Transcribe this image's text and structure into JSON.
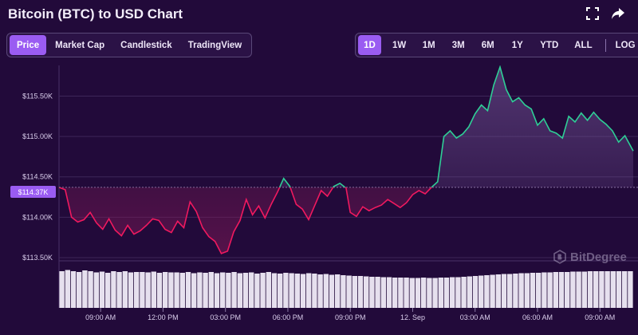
{
  "header": {
    "title": "Bitcoin (BTC) to USD Chart",
    "expand_icon": "expand-icon",
    "share_icon": "share-icon"
  },
  "chart_tabs": [
    "Price",
    "Market Cap",
    "Candlestick",
    "TradingView"
  ],
  "active_chart_tab": "Price",
  "timeframes": [
    "1D",
    "1W",
    "1M",
    "3M",
    "6M",
    "1Y",
    "YTD",
    "ALL"
  ],
  "active_timeframe": "1D",
  "log_label": "LOG",
  "current_price_label": "$114.37K",
  "watermark": "BitDegree",
  "colors": {
    "background": "#220a3a",
    "accent": "#9a5cf2",
    "up_line": "#2ecf96",
    "down_line": "#f0195f",
    "grid": "#3d2658",
    "volume": "#e6e0ee"
  },
  "chart_data": {
    "type": "line",
    "title": "Bitcoin (BTC) to USD Chart",
    "xlabel": "",
    "ylabel": "",
    "x_ticks": [
      "09:00 AM",
      "12:00 PM",
      "03:00 PM",
      "06:00 PM",
      "09:00 PM",
      "12. Sep",
      "03:00 AM",
      "06:00 AM",
      "09:00 AM"
    ],
    "y_ticks": [
      "$115.50K",
      "$115.00K",
      "$114.50K",
      "$114.00K",
      "$113.50K"
    ],
    "y_tick_values": [
      115500,
      115000,
      114500,
      114000,
      113500
    ],
    "ylim": [
      113460,
      115880
    ],
    "baseline": 114370,
    "hours_range": [
      -2.0,
      25.6
    ],
    "grid": true,
    "series": [
      {
        "points": [
          [
            -2.0,
            114370
          ],
          [
            -1.7,
            114340
          ],
          [
            -1.4,
            114000
          ],
          [
            -1.1,
            113940
          ],
          [
            -0.8,
            113970
          ],
          [
            -0.5,
            114060
          ],
          [
            -0.2,
            113930
          ],
          [
            0.1,
            113850
          ],
          [
            0.4,
            113980
          ],
          [
            0.7,
            113840
          ],
          [
            1.0,
            113770
          ],
          [
            1.3,
            113900
          ],
          [
            1.6,
            113790
          ],
          [
            1.9,
            113830
          ],
          [
            2.2,
            113900
          ],
          [
            2.5,
            113980
          ],
          [
            2.8,
            113960
          ],
          [
            3.1,
            113850
          ],
          [
            3.4,
            113810
          ],
          [
            3.7,
            113950
          ],
          [
            4.0,
            113870
          ],
          [
            4.3,
            114190
          ],
          [
            4.6,
            114070
          ],
          [
            4.9,
            113870
          ],
          [
            5.2,
            113760
          ],
          [
            5.5,
            113700
          ],
          [
            5.8,
            113550
          ],
          [
            6.1,
            113580
          ],
          [
            6.4,
            113820
          ],
          [
            6.7,
            113960
          ],
          [
            7.0,
            114220
          ],
          [
            7.3,
            114030
          ],
          [
            7.6,
            114140
          ],
          [
            7.9,
            113990
          ],
          [
            8.2,
            114160
          ],
          [
            8.5,
            114310
          ],
          [
            8.8,
            114480
          ],
          [
            9.1,
            114380
          ],
          [
            9.4,
            114160
          ],
          [
            9.7,
            114100
          ],
          [
            10.0,
            113970
          ],
          [
            10.3,
            114150
          ],
          [
            10.6,
            114330
          ],
          [
            10.9,
            114260
          ],
          [
            11.2,
            114380
          ],
          [
            11.5,
            114420
          ],
          [
            11.8,
            114360
          ],
          [
            12.0,
            114060
          ],
          [
            12.3,
            114010
          ],
          [
            12.6,
            114130
          ],
          [
            12.9,
            114080
          ],
          [
            13.2,
            114120
          ],
          [
            13.5,
            114150
          ],
          [
            13.8,
            114220
          ],
          [
            14.1,
            114170
          ],
          [
            14.4,
            114120
          ],
          [
            14.7,
            114180
          ],
          [
            15.0,
            114280
          ],
          [
            15.3,
            114330
          ],
          [
            15.6,
            114290
          ],
          [
            15.9,
            114370
          ],
          [
            16.2,
            114440
          ],
          [
            16.5,
            115000
          ],
          [
            16.8,
            115070
          ],
          [
            17.1,
            114980
          ],
          [
            17.4,
            115030
          ],
          [
            17.7,
            115120
          ],
          [
            18.0,
            115280
          ],
          [
            18.3,
            115390
          ],
          [
            18.6,
            115320
          ],
          [
            18.9,
            115640
          ],
          [
            19.2,
            115860
          ],
          [
            19.5,
            115580
          ],
          [
            19.8,
            115430
          ],
          [
            20.1,
            115480
          ],
          [
            20.4,
            115390
          ],
          [
            20.7,
            115340
          ],
          [
            21.0,
            115140
          ],
          [
            21.3,
            115220
          ],
          [
            21.6,
            115070
          ],
          [
            21.9,
            115040
          ],
          [
            22.2,
            114980
          ],
          [
            22.5,
            115250
          ],
          [
            22.8,
            115180
          ],
          [
            23.1,
            115290
          ],
          [
            23.4,
            115200
          ],
          [
            23.7,
            115300
          ],
          [
            24.0,
            115210
          ],
          [
            24.3,
            115150
          ],
          [
            24.6,
            115070
          ],
          [
            24.9,
            114930
          ],
          [
            25.2,
            115010
          ],
          [
            25.6,
            114820
          ]
        ]
      }
    ],
    "volume": [
      0.92,
      0.95,
      0.92,
      0.9,
      0.94,
      0.92,
      0.89,
      0.91,
      0.88,
      0.92,
      0.9,
      0.92,
      0.89,
      0.9,
      0.9,
      0.89,
      0.91,
      0.88,
      0.9,
      0.89,
      0.89,
      0.88,
      0.9,
      0.87,
      0.89,
      0.88,
      0.9,
      0.87,
      0.89,
      0.88,
      0.9,
      0.87,
      0.88,
      0.89,
      0.86,
      0.88,
      0.9,
      0.87,
      0.86,
      0.88,
      0.87,
      0.86,
      0.85,
      0.87,
      0.86,
      0.84,
      0.85,
      0.83,
      0.84,
      0.82,
      0.81,
      0.8,
      0.8,
      0.79,
      0.78,
      0.78,
      0.77,
      0.77,
      0.76,
      0.76,
      0.76,
      0.75,
      0.75,
      0.76,
      0.75,
      0.75,
      0.76,
      0.76,
      0.77,
      0.77,
      0.78,
      0.79,
      0.8,
      0.81,
      0.82,
      0.83,
      0.84,
      0.85,
      0.85,
      0.86,
      0.87,
      0.87,
      0.88,
      0.88,
      0.89,
      0.89,
      0.9,
      0.9,
      0.9,
      0.91,
      0.91,
      0.91,
      0.92,
      0.92,
      0.92,
      0.92,
      0.92,
      0.92,
      0.92,
      0.92
    ]
  }
}
